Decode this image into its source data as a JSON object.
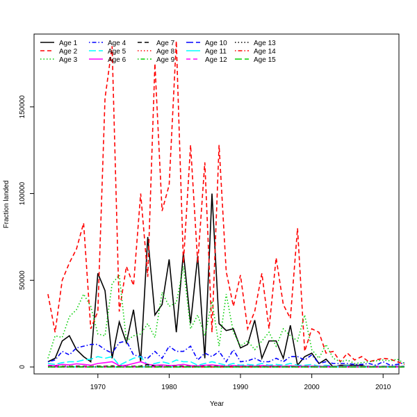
{
  "chart_data": {
    "type": "line",
    "title": "",
    "xlabel": "Year",
    "ylabel": "Fraction landed",
    "xlim": [
      1963,
      2013
    ],
    "ylim": [
      -4000,
      192000
    ],
    "xticks": [
      1970,
      1980,
      1990,
      2000,
      2010
    ],
    "yticks": [
      0,
      50000,
      100000,
      150000
    ],
    "legend_position": "top-left",
    "x_start": 1963,
    "series": [
      {
        "name": "Age 1",
        "color": "#000000",
        "lty": "solid",
        "values": [
          3000,
          5000,
          15000,
          18000,
          10000,
          6000,
          3000,
          54000,
          44000,
          5000,
          26000,
          14000,
          33000,
          3000,
          75000,
          30000,
          36000,
          62000,
          20000,
          66000,
          25000,
          64000,
          5000,
          100000,
          25000,
          21000,
          22000,
          11000,
          13000,
          27000,
          5000,
          15000,
          15000,
          5000,
          24000,
          1000,
          6000,
          8000,
          2000,
          4500,
          0,
          1000,
          1000,
          1000,
          1000,
          0,
          0,
          0,
          0,
          0,
          0
        ]
      },
      {
        "name": "Age 2",
        "color": "#FF0000",
        "lty": "dashed",
        "values": [
          42000,
          20000,
          50000,
          60000,
          68000,
          83000,
          22000,
          32000,
          155000,
          185000,
          32000,
          58000,
          47000,
          100000,
          52000,
          175000,
          90000,
          105000,
          188000,
          60000,
          128000,
          60000,
          118000,
          20000,
          128000,
          55000,
          35000,
          53000,
          22000,
          32000,
          54000,
          22000,
          63000,
          36000,
          28000,
          80000,
          9000,
          22000,
          20000,
          8000,
          9000,
          3000,
          8000,
          4000,
          6000,
          3000,
          4000,
          5000,
          4500,
          3000,
          1500
        ]
      },
      {
        "name": "Age 3",
        "color": "#00CD00",
        "lty": "dotted",
        "values": [
          5000,
          18000,
          17000,
          29000,
          33000,
          42000,
          35000,
          19000,
          18000,
          48000,
          53000,
          15000,
          18000,
          19000,
          25000,
          17000,
          43000,
          35000,
          37000,
          58000,
          22000,
          30000,
          18000,
          38000,
          12000,
          42000,
          20000,
          12000,
          15000,
          10000,
          15000,
          20000,
          12000,
          22000,
          18000,
          15000,
          30000,
          10000,
          5000,
          13000,
          5000,
          3000,
          4000,
          2000,
          2500,
          3000,
          3500,
          4000,
          3500,
          4500,
          2000
        ]
      },
      {
        "name": "Age 4",
        "color": "#0000FF",
        "lty": "dotdash",
        "values": [
          3000,
          4000,
          9000,
          7000,
          11000,
          12000,
          13000,
          13000,
          10000,
          8000,
          14000,
          15000,
          7000,
          6000,
          5000,
          9000,
          5000,
          12000,
          9000,
          9000,
          12000,
          4000,
          8000,
          6000,
          9000,
          3000,
          10000,
          3000,
          3500,
          5000,
          3000,
          3000,
          5000,
          3000,
          6000,
          6000,
          4000,
          7000,
          2000,
          3000,
          2000,
          2000,
          2000,
          1500,
          1500,
          2000,
          1000,
          3000,
          1000,
          1500,
          2500
        ]
      },
      {
        "name": "Age 5",
        "color": "#00FFFF",
        "lty": "longdash",
        "values": [
          2000,
          1500,
          2500,
          3000,
          3000,
          4000,
          4500,
          6000,
          5000,
          6000,
          1000,
          3000,
          5000,
          6000,
          1000,
          2000,
          3000,
          2000,
          4000,
          3000,
          3000,
          1000,
          2000,
          3000,
          2000,
          1000,
          2000,
          1000,
          1500,
          1000,
          2000,
          1000,
          1500,
          1000,
          2000,
          1000,
          1000,
          1500,
          500,
          1000,
          500,
          500,
          800,
          500,
          500,
          500,
          500,
          500,
          500,
          500,
          500
        ]
      },
      {
        "name": "Age 6",
        "color": "#FF00FF",
        "lty": "solid",
        "values": [
          1000,
          800,
          1500,
          1200,
          1800,
          1500,
          1000,
          2000,
          2500,
          3000,
          800,
          1000,
          2000,
          3000,
          1500,
          1000,
          1200,
          800,
          1000,
          1500,
          800,
          600,
          1000,
          1200,
          800,
          500,
          800,
          500,
          600,
          500,
          800,
          500,
          600,
          400,
          600,
          400,
          500,
          500,
          300,
          400,
          300,
          300,
          300,
          300,
          300,
          300,
          300,
          300,
          300,
          300,
          300
        ]
      },
      {
        "name": "Age 7",
        "color": "#000000",
        "lty": "dashed",
        "values": [
          300,
          300,
          400,
          400,
          500,
          400,
          300,
          500,
          400,
          600,
          300,
          300,
          400,
          500,
          1500,
          400,
          400,
          300,
          400,
          500,
          300,
          300,
          300,
          400,
          300,
          200,
          300,
          200,
          300,
          200,
          300,
          200,
          300,
          200,
          300,
          200,
          200,
          200,
          200,
          200,
          200,
          200,
          200,
          200,
          200,
          200,
          200,
          200,
          200,
          200,
          200
        ]
      },
      {
        "name": "Age 8",
        "color": "#FF0000",
        "lty": "dotted",
        "values": [
          200,
          200,
          300,
          300,
          300,
          300,
          200,
          300,
          300,
          400,
          200,
          200,
          300,
          300,
          500,
          300,
          300,
          200,
          300,
          300,
          200,
          200,
          200,
          300,
          200,
          200,
          200,
          200,
          200,
          200,
          200,
          200,
          200,
          200,
          200,
          200,
          200,
          200,
          200,
          200,
          200,
          200,
          200,
          200,
          200,
          200,
          200,
          200,
          200,
          200,
          200
        ]
      },
      {
        "name": "Age 9",
        "color": "#00CD00",
        "lty": "dotdash",
        "values": [
          100,
          100,
          200,
          200,
          200,
          200,
          100,
          200,
          200,
          200,
          100,
          100,
          200,
          200,
          300,
          200,
          200,
          100,
          200,
          200,
          100,
          100,
          100,
          200,
          100,
          100,
          100,
          100,
          100,
          100,
          100,
          100,
          100,
          100,
          100,
          100,
          100,
          100,
          100,
          100,
          100,
          100,
          100,
          100,
          100,
          100,
          100,
          100,
          100,
          100,
          100
        ]
      },
      {
        "name": "Age 10",
        "color": "#0000FF",
        "lty": "longdash",
        "values": [
          100,
          100,
          100,
          100,
          100,
          100,
          100,
          100,
          100,
          100,
          100,
          100,
          100,
          100,
          200,
          100,
          100,
          100,
          100,
          100,
          100,
          100,
          100,
          100,
          100,
          100,
          100,
          100,
          100,
          100,
          100,
          100,
          100,
          100,
          100,
          100,
          100,
          100,
          100,
          100,
          100,
          100,
          100,
          100,
          100,
          100,
          100,
          100,
          100,
          100,
          100
        ]
      },
      {
        "name": "Age 11",
        "color": "#00FFFF",
        "lty": "solid",
        "values": [
          50,
          50,
          50,
          50,
          50,
          50,
          50,
          50,
          50,
          50,
          50,
          50,
          50,
          50,
          100,
          50,
          50,
          50,
          50,
          50,
          50,
          50,
          50,
          50,
          50,
          50,
          50,
          50,
          50,
          50,
          50,
          50,
          50,
          50,
          50,
          50,
          50,
          50,
          50,
          50,
          50,
          50,
          50,
          50,
          50,
          50,
          50,
          50,
          50,
          50,
          50
        ]
      },
      {
        "name": "Age 12",
        "color": "#FF00FF",
        "lty": "dashed",
        "values": [
          50,
          50,
          50,
          50,
          50,
          50,
          50,
          50,
          50,
          50,
          50,
          50,
          50,
          50,
          50,
          50,
          50,
          50,
          50,
          50,
          50,
          50,
          50,
          50,
          50,
          50,
          50,
          50,
          50,
          50,
          50,
          50,
          50,
          50,
          50,
          50,
          50,
          50,
          50,
          50,
          50,
          50,
          50,
          50,
          50,
          50,
          50,
          50,
          50,
          50,
          50
        ]
      },
      {
        "name": "Age 13",
        "color": "#000000",
        "lty": "dotted",
        "values": [
          0,
          0,
          0,
          0,
          0,
          0,
          0,
          0,
          0,
          0,
          0,
          0,
          0,
          0,
          0,
          0,
          0,
          0,
          0,
          0,
          0,
          0,
          0,
          0,
          0,
          0,
          0,
          0,
          0,
          0,
          0,
          0,
          0,
          0,
          0,
          0,
          0,
          0,
          0,
          0,
          0,
          0,
          0,
          0,
          0,
          0,
          0,
          0,
          0,
          0,
          0
        ]
      },
      {
        "name": "Age 14",
        "color": "#FF0000",
        "lty": "dotdash",
        "values": [
          0,
          0,
          0,
          0,
          0,
          0,
          0,
          0,
          0,
          0,
          0,
          0,
          0,
          0,
          0,
          0,
          0,
          0,
          0,
          0,
          0,
          0,
          0,
          0,
          0,
          0,
          0,
          0,
          0,
          0,
          0,
          0,
          0,
          0,
          0,
          0,
          0,
          0,
          0,
          0,
          0,
          0,
          0,
          0,
          0,
          0,
          0,
          0,
          0,
          0,
          0
        ]
      },
      {
        "name": "Age 15",
        "color": "#00CD00",
        "lty": "longdash",
        "values": [
          0,
          0,
          0,
          0,
          0,
          0,
          0,
          0,
          0,
          0,
          0,
          0,
          0,
          0,
          0,
          0,
          0,
          0,
          0,
          0,
          0,
          0,
          0,
          0,
          0,
          0,
          0,
          0,
          0,
          0,
          0,
          0,
          0,
          0,
          0,
          0,
          0,
          0,
          0,
          0,
          0,
          0,
          0,
          0,
          0,
          0,
          0,
          0,
          0,
          0,
          0
        ]
      }
    ]
  }
}
